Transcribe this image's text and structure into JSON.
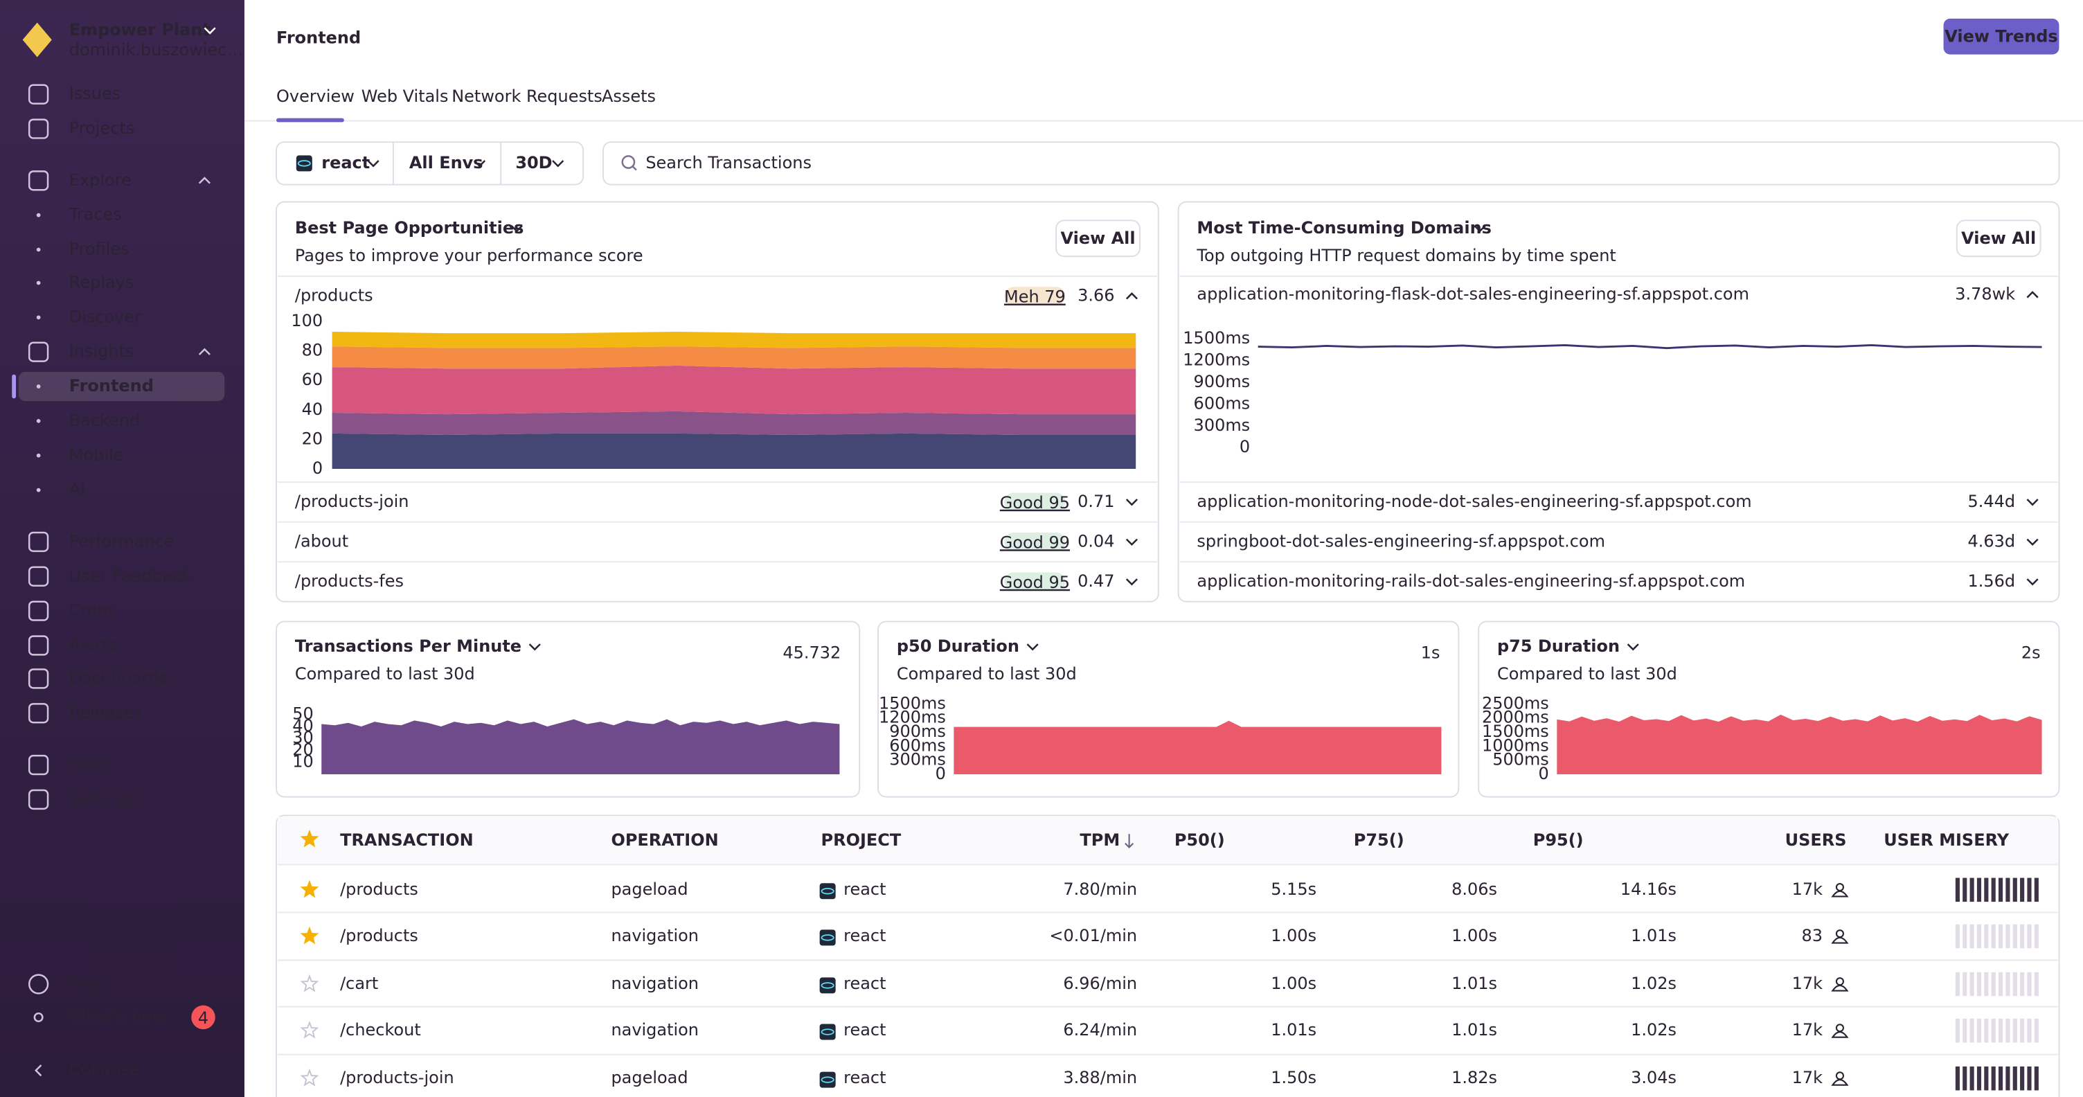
{
  "sidebar": {
    "org": "Empower Plant",
    "user": "dominik.buszowiec…",
    "top": [
      "Issues",
      "Projects"
    ],
    "explore": {
      "label": "Explore",
      "items": [
        "Traces",
        "Profiles",
        "Replays",
        "Discover"
      ]
    },
    "insights": {
      "label": "Insights",
      "items": [
        "Frontend",
        "Backend",
        "Mobile",
        "AI"
      ]
    },
    "more": [
      "Performance",
      "User Feedback",
      "Crons",
      "Alerts",
      "Dashboards",
      "Releases"
    ],
    "settings": [
      "Stats",
      "Settings"
    ],
    "footer": {
      "help": "Help",
      "whats_new": "What's new",
      "badge": 4,
      "collapse": "Collapse"
    }
  },
  "header": {
    "title": "Frontend",
    "button": "View Trends",
    "tabs": [
      "Overview",
      "Web Vitals",
      "Network Requests",
      "Assets"
    ]
  },
  "filters": {
    "project": "react",
    "environment": "All Envs",
    "period": "30D",
    "search": "Search Transactions"
  },
  "opportunities": {
    "title": "Best Page Opportunities",
    "subtitle": "Pages to improve your performance score",
    "button": "View All",
    "rows": [
      {
        "page": "/products",
        "badge": "Meh 79",
        "badge_color": "#f7e6cf",
        "score": 3.66
      },
      {
        "page": "/products-join",
        "badge": "Good 95",
        "badge_color": "#dcefe2",
        "score": 0.71
      },
      {
        "page": "/about",
        "badge": "Good 99",
        "badge_color": "#dcefe2",
        "score": 0.04
      },
      {
        "page": "/products-fes",
        "badge": "Good 95",
        "badge_color": "#dcefe2",
        "score": 0.47
      }
    ],
    "chart": {
      "type": "stacked-area",
      "ylim": [
        0,
        100
      ],
      "yticks": [
        0,
        20,
        40,
        60,
        80,
        100
      ],
      "series": [
        {
          "color": "#444674",
          "values": [
            24,
            23,
            24,
            24,
            23,
            24,
            23,
            23
          ]
        },
        {
          "color": "#895289",
          "values": [
            14,
            14,
            14,
            15,
            14,
            14,
            14,
            14
          ]
        },
        {
          "color": "#d6567f",
          "values": [
            31,
            31,
            30,
            31,
            31,
            31,
            31,
            31
          ]
        },
        {
          "color": "#f58c46",
          "values": [
            14,
            14,
            14,
            13,
            14,
            14,
            14,
            14
          ]
        },
        {
          "color": "#f2b712",
          "values": [
            10,
            10,
            10,
            10,
            10,
            9,
            10,
            10
          ]
        }
      ]
    }
  },
  "domains": {
    "title": "Most Time-Consuming Domains",
    "subtitle": "Top outgoing HTTP request domains by time spent",
    "button": "View All",
    "rows": [
      {
        "domain": "application-monitoring-flask-dot-sales-engineering-sf.appspot.com",
        "time": "3.78wk"
      },
      {
        "domain": "application-monitoring-node-dot-sales-engineering-sf.appspot.com",
        "time": "5.44d"
      },
      {
        "domain": "springboot-dot-sales-engineering-sf.appspot.com",
        "time": "4.63d"
      },
      {
        "domain": "application-monitoring-rails-dot-sales-engineering-sf.appspot.com",
        "time": "1.56d"
      }
    ],
    "chart": {
      "type": "line",
      "color": "#3b3470",
      "ylim": [
        0,
        1500
      ],
      "yticks": [
        {
          "value": 0,
          "label": "0"
        },
        {
          "value": 300,
          "label": "300ms"
        },
        {
          "value": 600,
          "label": "600ms"
        },
        {
          "value": 900,
          "label": "900ms"
        },
        {
          "value": 1200,
          "label": "1200ms"
        },
        {
          "value": 1500,
          "label": "1500ms"
        }
      ],
      "values": [
        1390,
        1380,
        1400,
        1385,
        1395,
        1390,
        1405,
        1380,
        1395,
        1410,
        1385,
        1400,
        1370,
        1395,
        1405,
        1380,
        1400,
        1390,
        1410,
        1385,
        1395,
        1400,
        1390,
        1385
      ]
    }
  },
  "widgets": [
    {
      "title": "Transactions Per Minute",
      "subtitle": "Compared to last 30d",
      "value": 45.732,
      "value_color": "#6c4f8a",
      "chart": {
        "type": "area",
        "color": "#6f4b8b",
        "ylim": [
          0,
          50
        ],
        "yticks": [
          10,
          20,
          30,
          40,
          50
        ],
        "values": [
          42,
          41,
          43,
          40,
          44,
          42,
          41,
          45,
          43,
          40,
          44,
          42,
          43,
          41,
          45,
          42,
          44,
          40,
          43,
          46,
          42,
          44,
          41,
          45,
          43,
          42,
          46,
          41,
          44,
          43,
          45,
          42,
          44,
          41,
          43,
          45,
          42,
          44,
          43,
          42
        ]
      }
    },
    {
      "title": "p50 Duration",
      "subtitle": "Compared to last 30d",
      "value": "1s",
      "value_color": "#e0505f",
      "chart": {
        "type": "area",
        "color": "#ea5a6a",
        "ylim": [
          0,
          1500
        ],
        "yticks": [
          {
            "value": 0,
            "label": "0"
          },
          {
            "value": 300,
            "label": "300ms"
          },
          {
            "value": 600,
            "label": "600ms"
          },
          {
            "value": 900,
            "label": "900ms"
          },
          {
            "value": 1200,
            "label": "1200ms"
          },
          {
            "value": 1500,
            "label": "1500ms"
          }
        ],
        "values": [
          1010,
          1010,
          1010,
          1010,
          1010,
          1010,
          1010,
          1010,
          1010,
          1010,
          1010,
          1010,
          1010,
          1010,
          1010,
          1010,
          1010,
          1010,
          1010,
          1010,
          1010,
          1010,
          1140,
          1010,
          1010,
          1010,
          1010,
          1010,
          1010,
          1010,
          1010,
          1010,
          1010,
          1010,
          1010,
          1010,
          1010,
          1010,
          1010,
          1010
        ]
      }
    },
    {
      "title": "p75 Duration",
      "subtitle": "Compared to last 30d",
      "value": "2s",
      "value_color": "#e0505f",
      "chart": {
        "type": "area",
        "color": "#ea5a6a",
        "ylim": [
          0,
          2500
        ],
        "yticks": [
          {
            "value": 0,
            "label": "0"
          },
          {
            "value": 500,
            "label": "500ms"
          },
          {
            "value": 1000,
            "label": "1000ms"
          },
          {
            "value": 1500,
            "label": "1500ms"
          },
          {
            "value": 2000,
            "label": "2000ms"
          },
          {
            "value": 2500,
            "label": "2500ms"
          }
        ],
        "values": [
          1950,
          1880,
          2050,
          1900,
          1990,
          1870,
          2080,
          1920,
          1960,
          1890,
          2100,
          1910,
          1980,
          1870,
          2060,
          1900,
          1950,
          1880,
          2120,
          1920,
          1970,
          1890,
          2050,
          1900,
          1960,
          1880,
          2090,
          1910,
          1990,
          1870,
          2070,
          1900,
          1950,
          1890,
          2110,
          1920,
          1980,
          1880,
          2060,
          1930
        ]
      }
    }
  ],
  "table": {
    "columns": [
      "TRANSACTION",
      "OPERATION",
      "PROJECT",
      "TPM",
      "P50()",
      "P75()",
      "P95()",
      "USERS",
      "USER MISERY"
    ],
    "rows": [
      {
        "starred": true,
        "cells": [
          "/products",
          "pageload",
          "react",
          "7.80/min",
          "5.15s",
          "8.06s",
          "14.16s",
          "17k"
        ],
        "user_misery": 1
      },
      {
        "starred": true,
        "cells": [
          "/products",
          "navigation",
          "react",
          "<0.01/min",
          "1.00s",
          "1.00s",
          "1.01s",
          "83"
        ],
        "user_misery": 0
      },
      {
        "starred": false,
        "cells": [
          "/cart",
          "navigation",
          "react",
          "6.96/min",
          "1.00s",
          "1.01s",
          "1.02s",
          "17k"
        ],
        "user_misery": 0
      },
      {
        "starred": false,
        "cells": [
          "/checkout",
          "navigation",
          "react",
          "6.24/min",
          "1.01s",
          "1.01s",
          "1.02s",
          "17k"
        ],
        "user_misery": 0
      },
      {
        "starred": false,
        "cells": [
          "/products-join",
          "pageload",
          "react",
          "3.88/min",
          "1.50s",
          "1.82s",
          "3.04s",
          "17k"
        ],
        "user_misery": 1
      }
    ]
  }
}
